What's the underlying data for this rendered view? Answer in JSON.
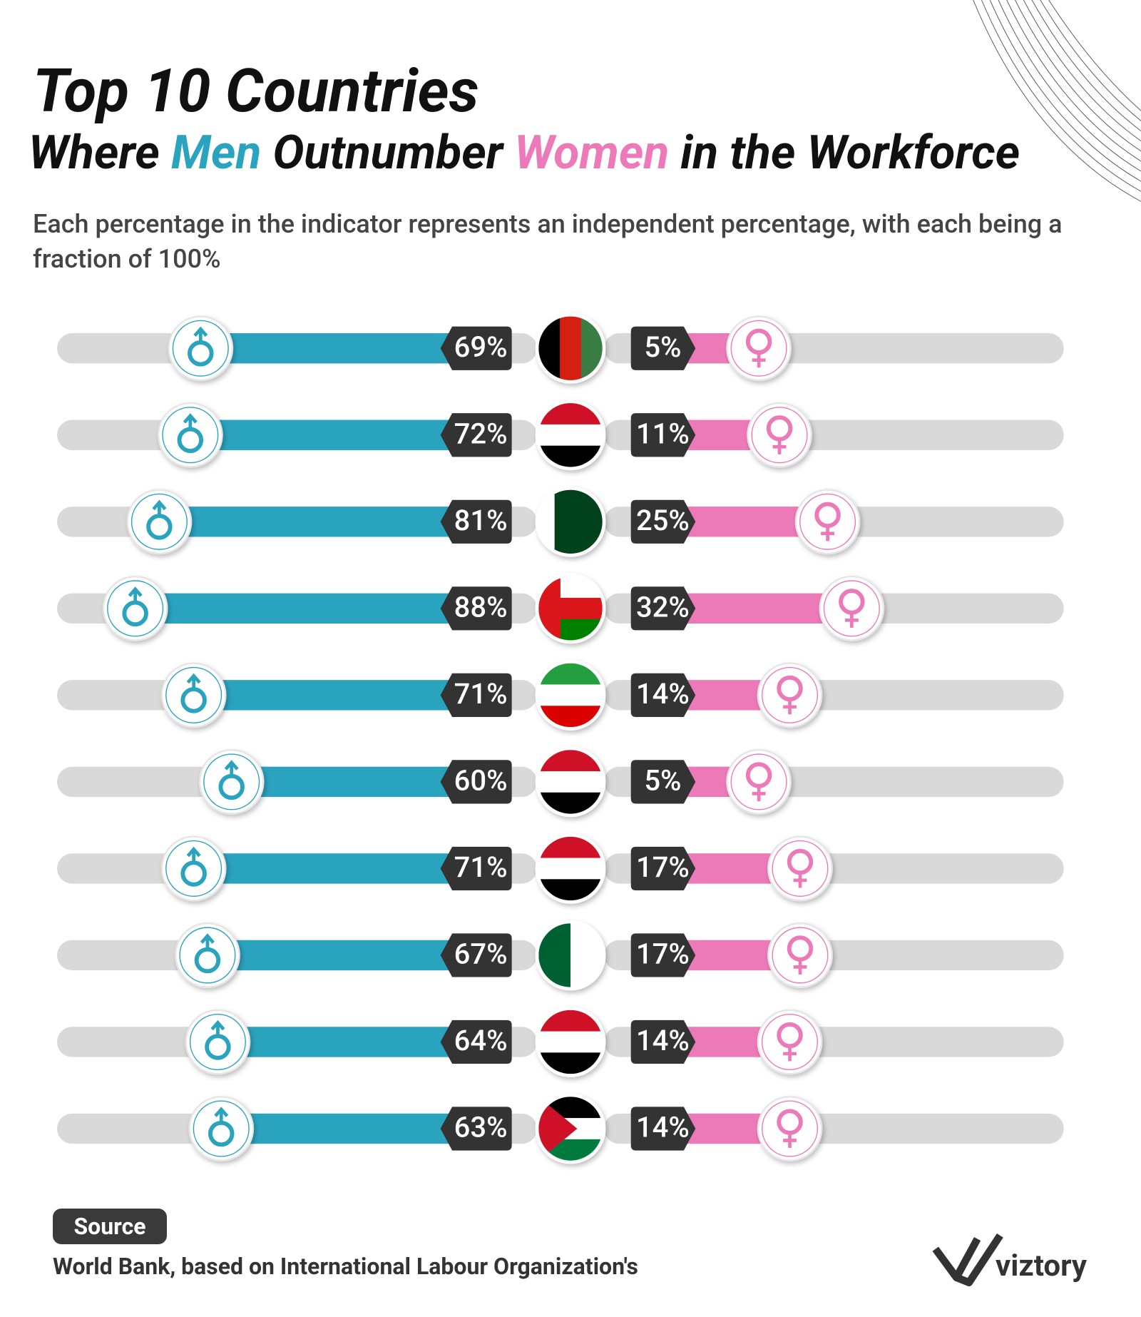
{
  "chart_data": {
    "type": "diverging-bar",
    "title": "Top 10 Countries",
    "subtitle": [
      "Where",
      "Outnumber",
      "in the Workforce"
    ],
    "description": "Each percentage in the indicator represents an independent percentage, with each being a fraction of 100%",
    "xlim": [
      0,
      100
    ],
    "series": [
      {
        "name": "Men",
        "color": "#2aa3bf",
        "values": [
          69,
          72,
          81,
          88,
          71,
          60,
          71,
          67,
          64,
          63
        ],
        "value_labels": [
          "69%",
          "72%",
          "81%",
          "88%",
          "71%",
          "60%",
          "71%",
          "67%",
          "64%",
          "63%"
        ]
      },
      {
        "name": "Women",
        "color": "#ec7ab8",
        "values": [
          5,
          11,
          25,
          32,
          14,
          5,
          17,
          17,
          14,
          14
        ],
        "value_labels": [
          "5%",
          "11%",
          "25%",
          "32%",
          "14%",
          "5%",
          "17%",
          "17%",
          "14%",
          "14%"
        ]
      }
    ],
    "source_label": "Source",
    "source": "World Bank, based on International Labour Organization's",
    "brand": "viztory"
  }
}
